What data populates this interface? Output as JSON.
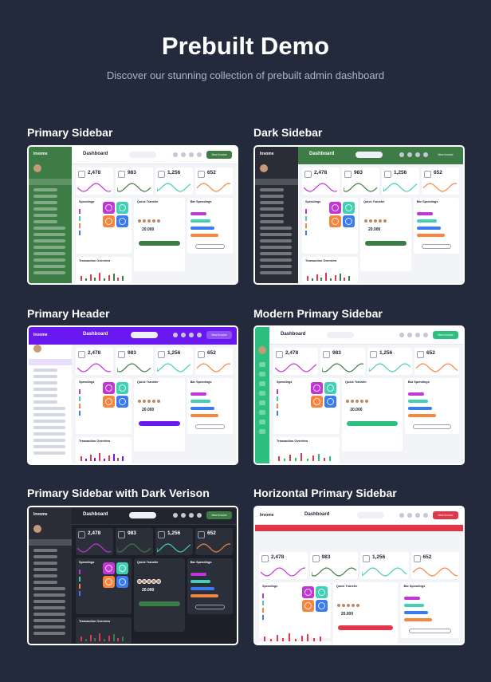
{
  "hero": {
    "title": "Prebuilt Demo",
    "subtitle": "Discover our stunning collection of prebuilt admin dashboard"
  },
  "dashboard": {
    "title": "Dashboard",
    "stats": [
      "2,478",
      "983",
      "1,256",
      "652"
    ],
    "spendings_label": "Spendings",
    "quick_transfer_label": "Quick Transfer",
    "bar_spendings_label": "Bar Spendings",
    "transaction_overview_label": "Transaction Overview",
    "transfer_amount": "20.000",
    "previous_transactions_label": "Previous Transactions",
    "new_invoice_label": "New Invoice",
    "brand": "Invome"
  },
  "demos": [
    {
      "title": "Primary Sidebar",
      "accent": "#3d7c45",
      "variant": "primary-sidebar"
    },
    {
      "title": "Dark Sidebar",
      "accent": "#3d7c45",
      "variant": "dark-sidebar"
    },
    {
      "title": "Primary Header",
      "accent": "#6a18f0",
      "variant": "primary-header"
    },
    {
      "title": "Modern Primary Sidebar",
      "accent": "#2dbf7f",
      "variant": "modern-sidebar"
    },
    {
      "title": "Primary Sidebar with Dark Verison",
      "accent": "#3d7c45",
      "variant": "dark-version"
    },
    {
      "title": "Horizontal Primary Sidebar",
      "accent": "#e0374a",
      "variant": "horizontal"
    }
  ],
  "colors": {
    "background": "#232a3c",
    "tile_pink": "#c235d6",
    "tile_teal": "#3fd0b6",
    "tile_orange": "#f7853c",
    "tile_blue": "#3a7bf0"
  }
}
